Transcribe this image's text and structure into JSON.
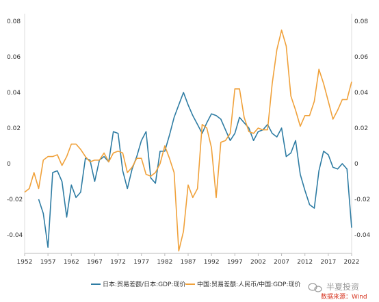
{
  "chart_data": {
    "type": "line",
    "title": "",
    "xlabel": "",
    "ylabel": "",
    "xlim": [
      1952,
      2022
    ],
    "ylim": [
      -0.05,
      0.08
    ],
    "x_ticks": [
      "1952",
      "1957",
      "1962",
      "1967",
      "1972",
      "1977",
      "1982",
      "1987",
      "1992",
      "1997",
      "2002",
      "2007",
      "2012",
      "2017",
      "2022"
    ],
    "y_ticks_left": [
      "0.08",
      "0.06",
      "0.04",
      "0.02",
      "0",
      "-0.02",
      "-0.04"
    ],
    "y_ticks_right": [
      "0.08",
      "0.06",
      "0.04",
      "0.02",
      "0",
      "-0.02",
      "-0.04"
    ],
    "grid": false,
    "legend_position": "bottom",
    "series": [
      {
        "name": "日本:贸易差额/日本:GDP:现价",
        "color": "#2e7ca3",
        "x": [
          1955,
          1956,
          1957,
          1958,
          1959,
          1960,
          1961,
          1962,
          1963,
          1964,
          1965,
          1966,
          1967,
          1968,
          1969,
          1970,
          1971,
          1972,
          1973,
          1974,
          1975,
          1976,
          1977,
          1978,
          1979,
          1980,
          1981,
          1982,
          1983,
          1984,
          1985,
          1986,
          1987,
          1988,
          1989,
          1990,
          1991,
          1992,
          1993,
          1994,
          1995,
          1996,
          1997,
          1998,
          1999,
          2000,
          2001,
          2002,
          2003,
          2004,
          2005,
          2006,
          2007,
          2008,
          2009,
          2010,
          2011,
          2012,
          2013,
          2014,
          2015,
          2016,
          2017,
          2018,
          2019,
          2020,
          2021,
          2022
        ],
        "values": [
          -0.02,
          -0.028,
          -0.047,
          -0.005,
          -0.004,
          -0.01,
          -0.03,
          -0.012,
          -0.019,
          -0.016,
          0.003,
          0.002,
          -0.01,
          0.002,
          0.004,
          0.001,
          0.018,
          0.017,
          -0.004,
          -0.014,
          -0.003,
          0.004,
          0.013,
          0.018,
          -0.008,
          -0.011,
          0.007,
          0.007,
          0.016,
          0.026,
          0.033,
          0.04,
          0.033,
          0.027,
          0.022,
          0.017,
          0.023,
          0.028,
          0.027,
          0.025,
          0.019,
          0.013,
          0.017,
          0.026,
          0.023,
          0.02,
          0.013,
          0.018,
          0.019,
          0.022,
          0.017,
          0.015,
          0.02,
          0.004,
          0.006,
          0.013,
          -0.006,
          -0.015,
          -0.023,
          -0.025,
          -0.004,
          0.007,
          0.005,
          -0.002,
          -0.003,
          0.0,
          -0.003,
          -0.036
        ]
      },
      {
        "name": "中国:贸易差额:人民币/中国:GDP:现价",
        "color": "#f0a13a",
        "x": [
          1952,
          1953,
          1954,
          1955,
          1956,
          1957,
          1958,
          1959,
          1960,
          1961,
          1962,
          1963,
          1964,
          1965,
          1966,
          1967,
          1968,
          1969,
          1970,
          1971,
          1972,
          1973,
          1974,
          1975,
          1976,
          1977,
          1978,
          1979,
          1980,
          1981,
          1982,
          1983,
          1984,
          1985,
          1986,
          1987,
          1988,
          1989,
          1990,
          1991,
          1992,
          1993,
          1994,
          1995,
          1996,
          1997,
          1998,
          1999,
          2000,
          2001,
          2002,
          2003,
          2004,
          2005,
          2006,
          2007,
          2008,
          2009,
          2010,
          2011,
          2012,
          2013,
          2014,
          2015,
          2016,
          2017,
          2018,
          2019,
          2020,
          2021,
          2022
        ],
        "values": [
          -0.016,
          -0.014,
          -0.005,
          -0.014,
          0.002,
          0.004,
          0.004,
          0.005,
          -0.001,
          0.004,
          0.011,
          0.011,
          0.008,
          0.004,
          0.001,
          0.002,
          0.002,
          0.006,
          0.001,
          0.006,
          0.007,
          0.006,
          -0.005,
          -0.002,
          0.003,
          0.003,
          -0.006,
          -0.007,
          -0.005,
          0.0,
          0.01,
          0.003,
          -0.005,
          -0.049,
          -0.038,
          -0.012,
          -0.019,
          -0.014,
          0.022,
          0.02,
          0.009,
          -0.019,
          0.012,
          0.013,
          0.017,
          0.042,
          0.042,
          0.026,
          0.018,
          0.017,
          0.02,
          0.019,
          0.019,
          0.045,
          0.064,
          0.075,
          0.066,
          0.038,
          0.03,
          0.021,
          0.027,
          0.027,
          0.035,
          0.053,
          0.045,
          0.035,
          0.025,
          0.03,
          0.036,
          0.036,
          0.046
        ]
      }
    ]
  },
  "watermark": {
    "logo_text": "半夏投资",
    "source_text": "数据来源：Wind",
    "colors": {
      "logo": "#9a9a9a",
      "source": "#d6321e"
    }
  }
}
